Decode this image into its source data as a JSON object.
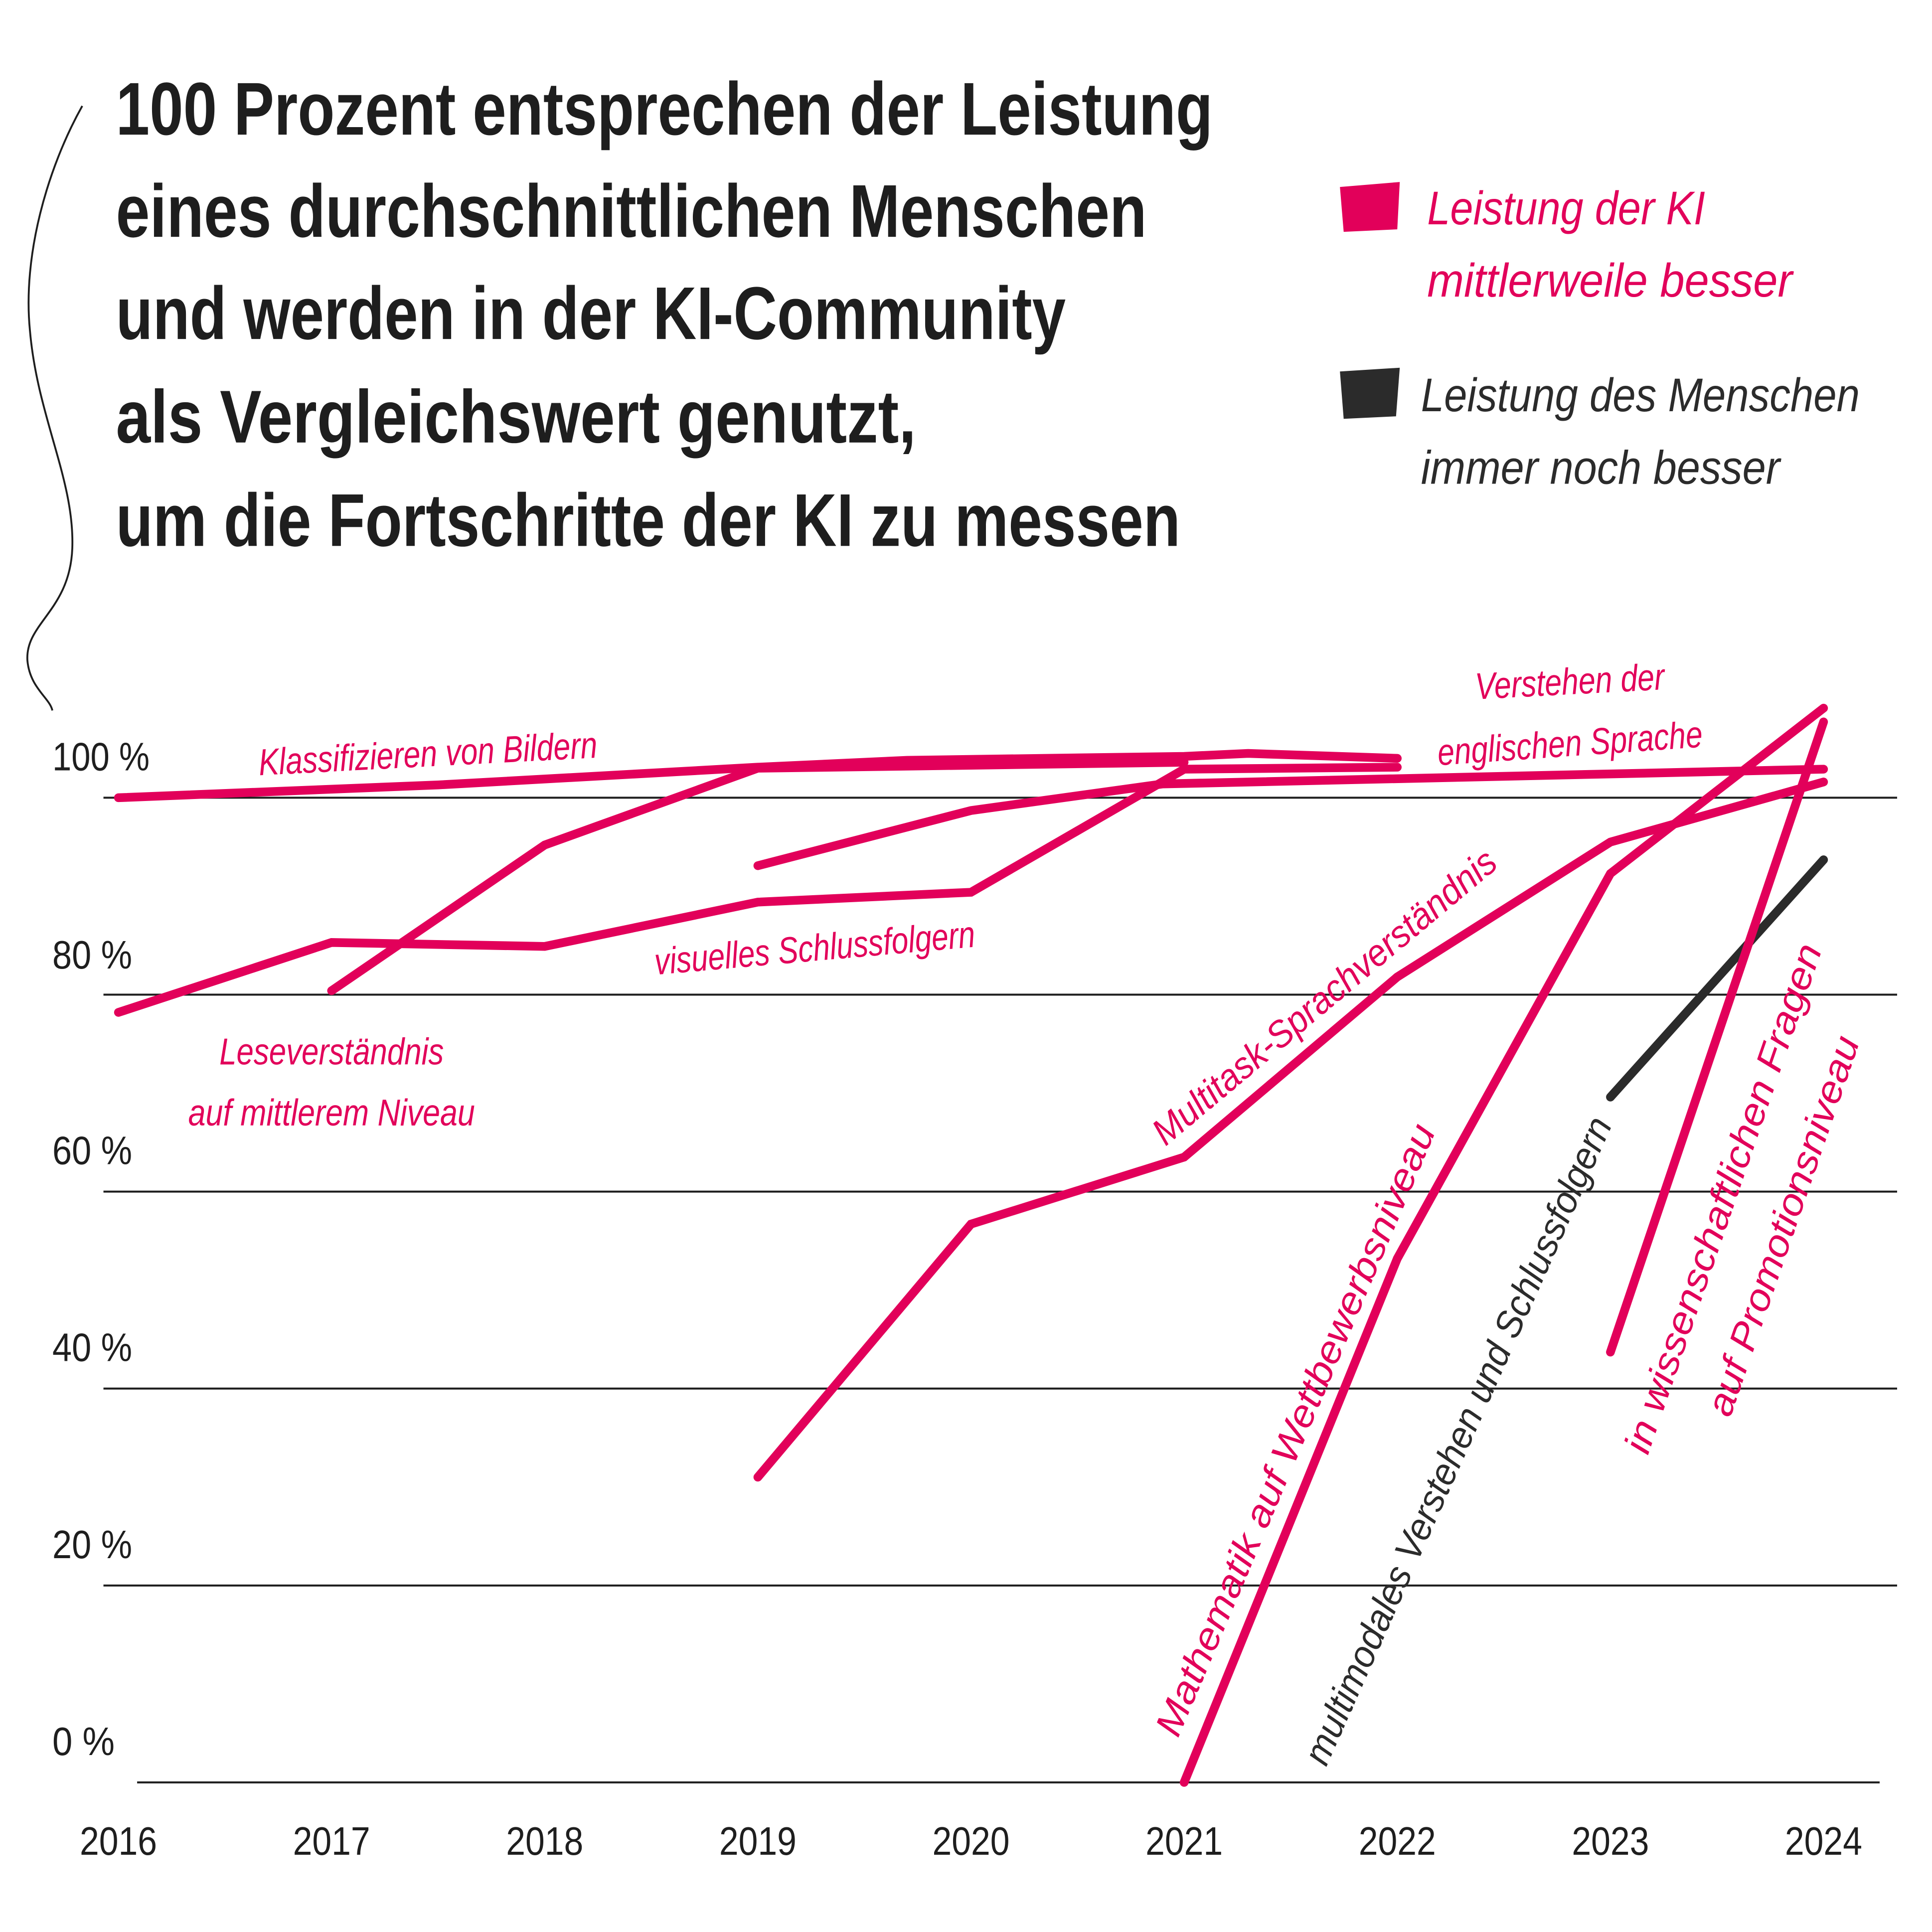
{
  "title_lines": [
    "100 Prozent entsprechen der Leistung",
    "eines durchschnittlichen Menschen",
    "und werden in der KI-Community",
    "als Vergleichswert genutzt,",
    "um die Fortschritte der KI zu messen"
  ],
  "legend": [
    {
      "lines": [
        "Leistung der KI",
        "mittlerweile besser"
      ],
      "color": "#e2005a"
    },
    {
      "lines": [
        "Leistung des Menschen",
        "immer noch besser"
      ],
      "color": "#2b2b2b"
    }
  ],
  "chart_data": {
    "type": "line",
    "xlabel": "",
    "ylabel": "",
    "x_ticks": [
      "2016",
      "2017",
      "2018",
      "2019",
      "2020",
      "2021",
      "2022",
      "2023",
      "2024"
    ],
    "y_ticks": [
      "0 %",
      "20 %",
      "40 %",
      "60 %",
      "80 %",
      "100 %"
    ],
    "xlim": [
      2016,
      2024
    ],
    "ylim": [
      0,
      110
    ],
    "grid": "horizontal",
    "legend_placement": "top-right",
    "series": [
      {
        "name": "Klassifizieren von Bildern",
        "label_lines": [
          "Klassifizieren von Bildern"
        ],
        "color": "#e2005a",
        "points": [
          [
            2016,
            100
          ],
          [
            2017.5,
            101.3
          ],
          [
            2019,
            103.1
          ],
          [
            2019.7,
            103.8
          ],
          [
            2021,
            104.2
          ],
          [
            2021.3,
            104.5
          ],
          [
            2022,
            104.0
          ]
        ]
      },
      {
        "name": "Leseverständnis auf mittlerem Niveau",
        "label_lines": [
          "Leseverständnis",
          "auf mittlerem Niveau"
        ],
        "color": "#e2005a",
        "points": [
          [
            2017,
            80.4
          ],
          [
            2018,
            95.2
          ],
          [
            2019,
            103.0
          ],
          [
            2021,
            103.6
          ]
        ]
      },
      {
        "name": "visuelles Schlussfolgern",
        "label_lines": [
          "visuelles Schlussfolgern"
        ],
        "color": "#e2005a",
        "points": [
          [
            2016,
            78.2
          ],
          [
            2017,
            85.3
          ],
          [
            2018,
            84.9
          ],
          [
            2019,
            89.4
          ],
          [
            2020,
            90.4
          ],
          [
            2021,
            102.9
          ],
          [
            2022,
            103.1
          ]
        ]
      },
      {
        "name": "Verstehen der englischen Sprache",
        "label_lines": [
          "Verstehen der",
          "englischen Sprache"
        ],
        "color": "#e2005a",
        "points": [
          [
            2019,
            93.1
          ],
          [
            2020,
            98.7
          ],
          [
            2020.9,
            101.4
          ],
          [
            2024,
            102.9
          ]
        ]
      },
      {
        "name": "Multitask-Sprachverständnis",
        "label_lines": [
          "Multitask-Sprachverständnis"
        ],
        "color": "#e2005a",
        "points": [
          [
            2019,
            31.0
          ],
          [
            2020,
            56.7
          ],
          [
            2021,
            63.5
          ],
          [
            2022,
            81.8
          ],
          [
            2023,
            95.5
          ],
          [
            2024,
            101.6
          ]
        ]
      },
      {
        "name": "Mathematik auf Wettbewerbsniveau",
        "label_lines": [
          "Mathematik auf Wettbewerbsniveau"
        ],
        "color": "#e2005a",
        "points": [
          [
            2021,
            0
          ],
          [
            2022,
            53.2
          ],
          [
            2023,
            92.3
          ],
          [
            2024,
            109.1
          ]
        ]
      },
      {
        "name": "multimodales Verstehen und Schlussfolgern",
        "label_lines": [
          "multimodales Verstehen und Schlussfolgern"
        ],
        "color": "#2b2b2b",
        "points": [
          [
            2023,
            69.6
          ],
          [
            2024,
            93.7
          ]
        ]
      },
      {
        "name": "in wissenschaftlichen Fragen auf Promotionsniveau",
        "label_lines": [
          "in wissenschaftlichen Fragen",
          "auf Promotionsniveau"
        ],
        "color": "#e2005a",
        "points": [
          [
            2023,
            43.7
          ],
          [
            2024,
            107.7
          ]
        ]
      }
    ]
  }
}
